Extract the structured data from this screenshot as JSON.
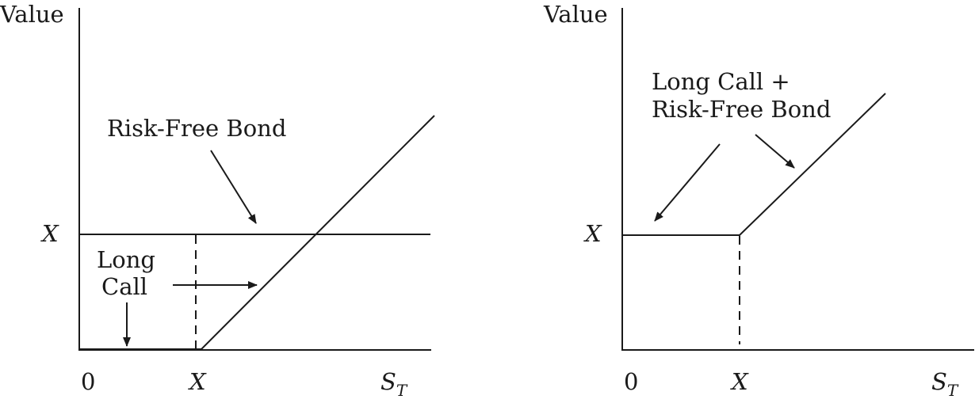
{
  "left_panel": {
    "y_axis_label": "Value",
    "strike_y_label": "X",
    "origin_label": "0",
    "strike_x_label": "X",
    "x_axis_label": {
      "main": "S",
      "sub": "T"
    },
    "bond_label": "Risk-Free Bond",
    "call_label_line1": "Long",
    "call_label_line2": "Call"
  },
  "right_panel": {
    "y_axis_label": "Value",
    "strike_y_label": "X",
    "origin_label": "0",
    "strike_x_label": "X",
    "x_axis_label": {
      "main": "S",
      "sub": "T"
    },
    "combo_label_line1": "Long Call +",
    "combo_label_line2": "Risk-Free Bond"
  },
  "colors": {
    "ink": "#1a1a1a",
    "background": "#ffffff"
  }
}
